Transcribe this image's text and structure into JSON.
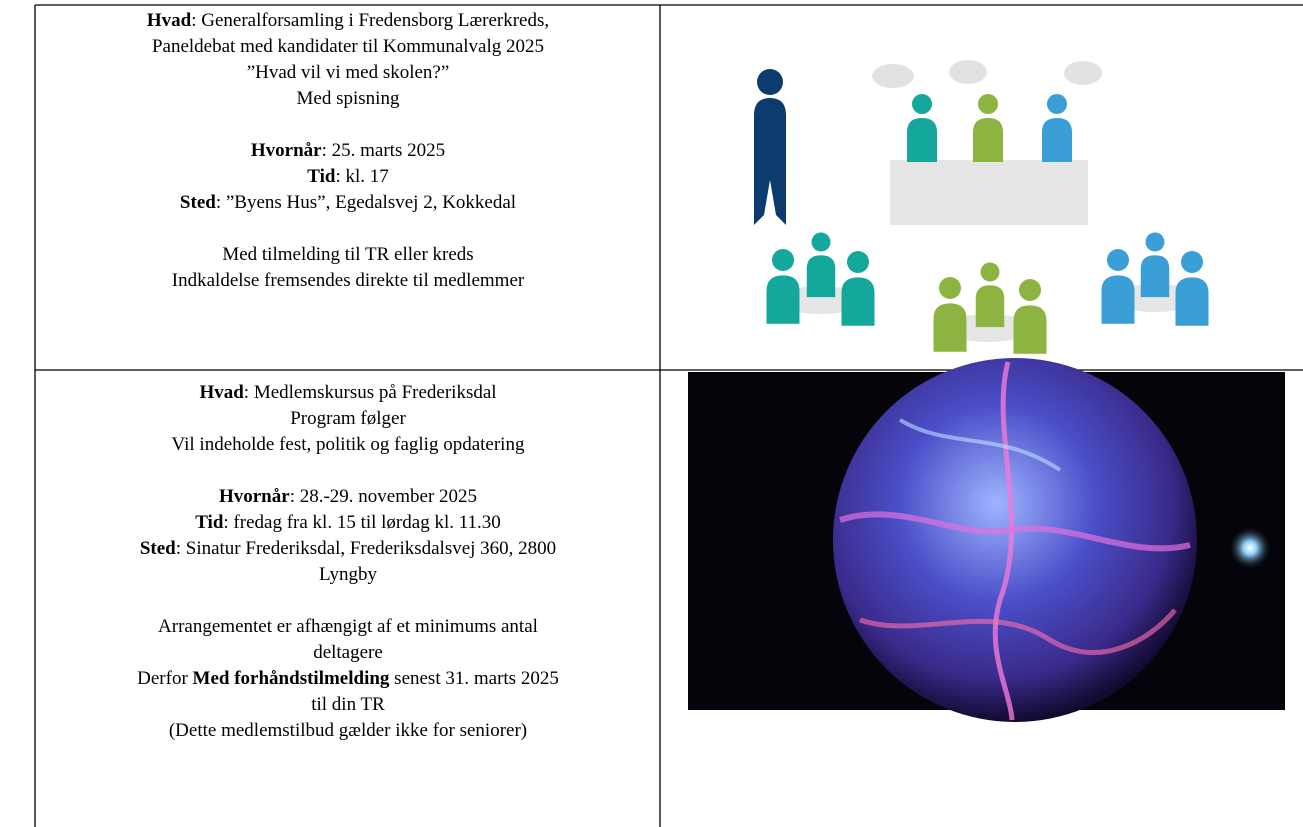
{
  "rows": [
    {
      "lines": [
        [
          {
            "bold": "Hvad"
          },
          {
            "text": ": Generalforsamling i Fredensborg Lærerkreds,"
          }
        ],
        [
          {
            "text": "Paneldebat med kandidater til Kommunalvalg 2025"
          }
        ],
        [
          {
            "text": "”Hvad vil vi med skolen?”"
          }
        ],
        [
          {
            "text": "Med spisning"
          }
        ],
        [
          {
            "bold": "Hvornår"
          },
          {
            "text": ": 25. marts 2025"
          }
        ],
        [
          {
            "bold": "Tid"
          },
          {
            "text": ": kl. 17"
          }
        ],
        [
          {
            "bold": "Sted"
          },
          {
            "text": ": ”Byens Hus”, Egedalsvej 2, Kokkedal"
          }
        ],
        [
          {
            "text": "Med tilmelding til TR eller kreds"
          }
        ],
        [
          {
            "text": "Indkaldelse fremsendes direkte til medlemmer"
          }
        ]
      ]
    },
    {
      "lines": [
        [
          {
            "bold": "Hvad"
          },
          {
            "text": ": Medlemskursus på Frederiksdal"
          }
        ],
        [
          {
            "text": "Program følger"
          }
        ],
        [
          {
            "text": "Vil indeholde fest, politik og faglig opdatering"
          }
        ],
        [
          {
            "bold": "Hvornår"
          },
          {
            "text": ": 28.-29. november 2025"
          }
        ],
        [
          {
            "bold": "Tid"
          },
          {
            "text": ": fredag fra kl. 15 til lørdag kl. 11.30"
          }
        ],
        [
          {
            "bold": "Sted"
          },
          {
            "text": ": Sinatur Frederiksdal, Frederiksdalsvej 360, 2800"
          }
        ],
        [
          {
            "text": "Lyngby"
          }
        ],
        [
          {
            "text": "Arrangementet er afhængigt af et minimums antal"
          }
        ],
        [
          {
            "text": "deltagere"
          }
        ],
        [
          {
            "text": "Derfor "
          },
          {
            "bold": "Med forhåndstilmelding"
          },
          {
            "text": " senest 31. marts 2025"
          }
        ],
        [
          {
            "text": "til din TR"
          }
        ],
        [
          {
            "text": "(Dette medlemstilbud gælder ikke for seniorer)"
          }
        ]
      ]
    }
  ]
}
